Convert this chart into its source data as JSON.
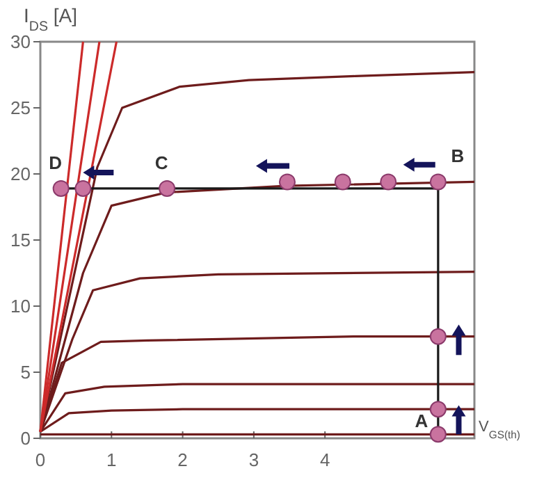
{
  "chart_data": {
    "type": "line",
    "ylabel": "I$_{DS}$ [A]",
    "xlim": [
      0,
      6.1
    ],
    "ylim": [
      0,
      30
    ],
    "xticks": [
      0,
      1,
      2,
      3,
      4
    ],
    "yticks": [
      0,
      5,
      10,
      15,
      20,
      25,
      30
    ],
    "grid": false,
    "marker": "none",
    "series": [
      {
        "color": "#6e1c1c",
        "x": [
          0,
          6.1
        ],
        "values": [
          0.3,
          0.3
        ]
      },
      {
        "color": "#6e1c1c",
        "x": [
          0,
          0.4,
          1,
          2,
          6.1
        ],
        "values": [
          0.5,
          1.9,
          2.1,
          2.2,
          2.2
        ]
      },
      {
        "color": "#6e1c1c",
        "x": [
          0,
          0.35,
          0.9,
          2,
          6.1
        ],
        "values": [
          0.5,
          3.4,
          3.9,
          4.1,
          4.1
        ]
      },
      {
        "color": "#6e1c1c",
        "x": [
          0,
          0.3,
          0.85,
          1.5,
          4.4,
          6.1
        ],
        "values": [
          0.5,
          5.7,
          7.3,
          7.4,
          7.7,
          7.7
        ]
      },
      {
        "color": "#6e1c1c",
        "x": [
          0,
          0.45,
          0.74,
          1.4,
          2.5,
          6.1
        ],
        "values": [
          0.5,
          7.5,
          11.2,
          12.1,
          12.4,
          12.6
        ]
      },
      {
        "color": "#6e1c1c",
        "x": [
          0,
          0.6,
          1,
          1.77,
          3.45,
          6.1
        ],
        "values": [
          0.5,
          12.5,
          17.6,
          18.6,
          19.1,
          19.4
        ]
      },
      {
        "color": "#6e1c1c",
        "x": [
          0,
          0.8,
          1.15,
          1.96,
          2.93,
          4.43,
          6.1
        ],
        "values": [
          0.5,
          20.5,
          25,
          26.6,
          27.1,
          27.4,
          27.7
        ]
      },
      {
        "color": "#cc2a2a",
        "x": [
          0,
          1.07
        ],
        "values": [
          0.5,
          30
        ]
      },
      {
        "color": "#cc2a2a",
        "x": [
          0,
          0.83
        ],
        "values": [
          0.5,
          30
        ]
      },
      {
        "color": "#cc2a2a",
        "x": [
          0,
          0.6
        ],
        "values": [
          0.5,
          30
        ]
      },
      {
        "color": "#1a1a1a",
        "x": [
          0.29,
          5.59,
          5.59
        ],
        "values": [
          18.9,
          18.9,
          0
        ]
      },
      {
        "type": "scatter",
        "marker": "circle",
        "color": "#c9739f",
        "x": [
          0.29,
          0.6,
          1.78,
          3.47,
          4.25,
          4.89,
          5.59,
          5.59,
          5.59,
          5.59
        ],
        "values": [
          18.9,
          18.9,
          18.9,
          19.4,
          19.4,
          19.4,
          19.4,
          7.7,
          2.2,
          0.3
        ]
      }
    ],
    "annotations": [
      {
        "text": "D",
        "x": 0.29,
        "y": 18.9
      },
      {
        "text": "C",
        "x": 1.78,
        "y": 18.9
      },
      {
        "text": "B",
        "x": 5.59,
        "y": 19.4
      },
      {
        "text": "A",
        "x": 5.59,
        "y": 0.3
      },
      {
        "text": "V$_{GS(th)}$",
        "x": 6.1,
        "y": 0.3
      }
    ]
  }
}
